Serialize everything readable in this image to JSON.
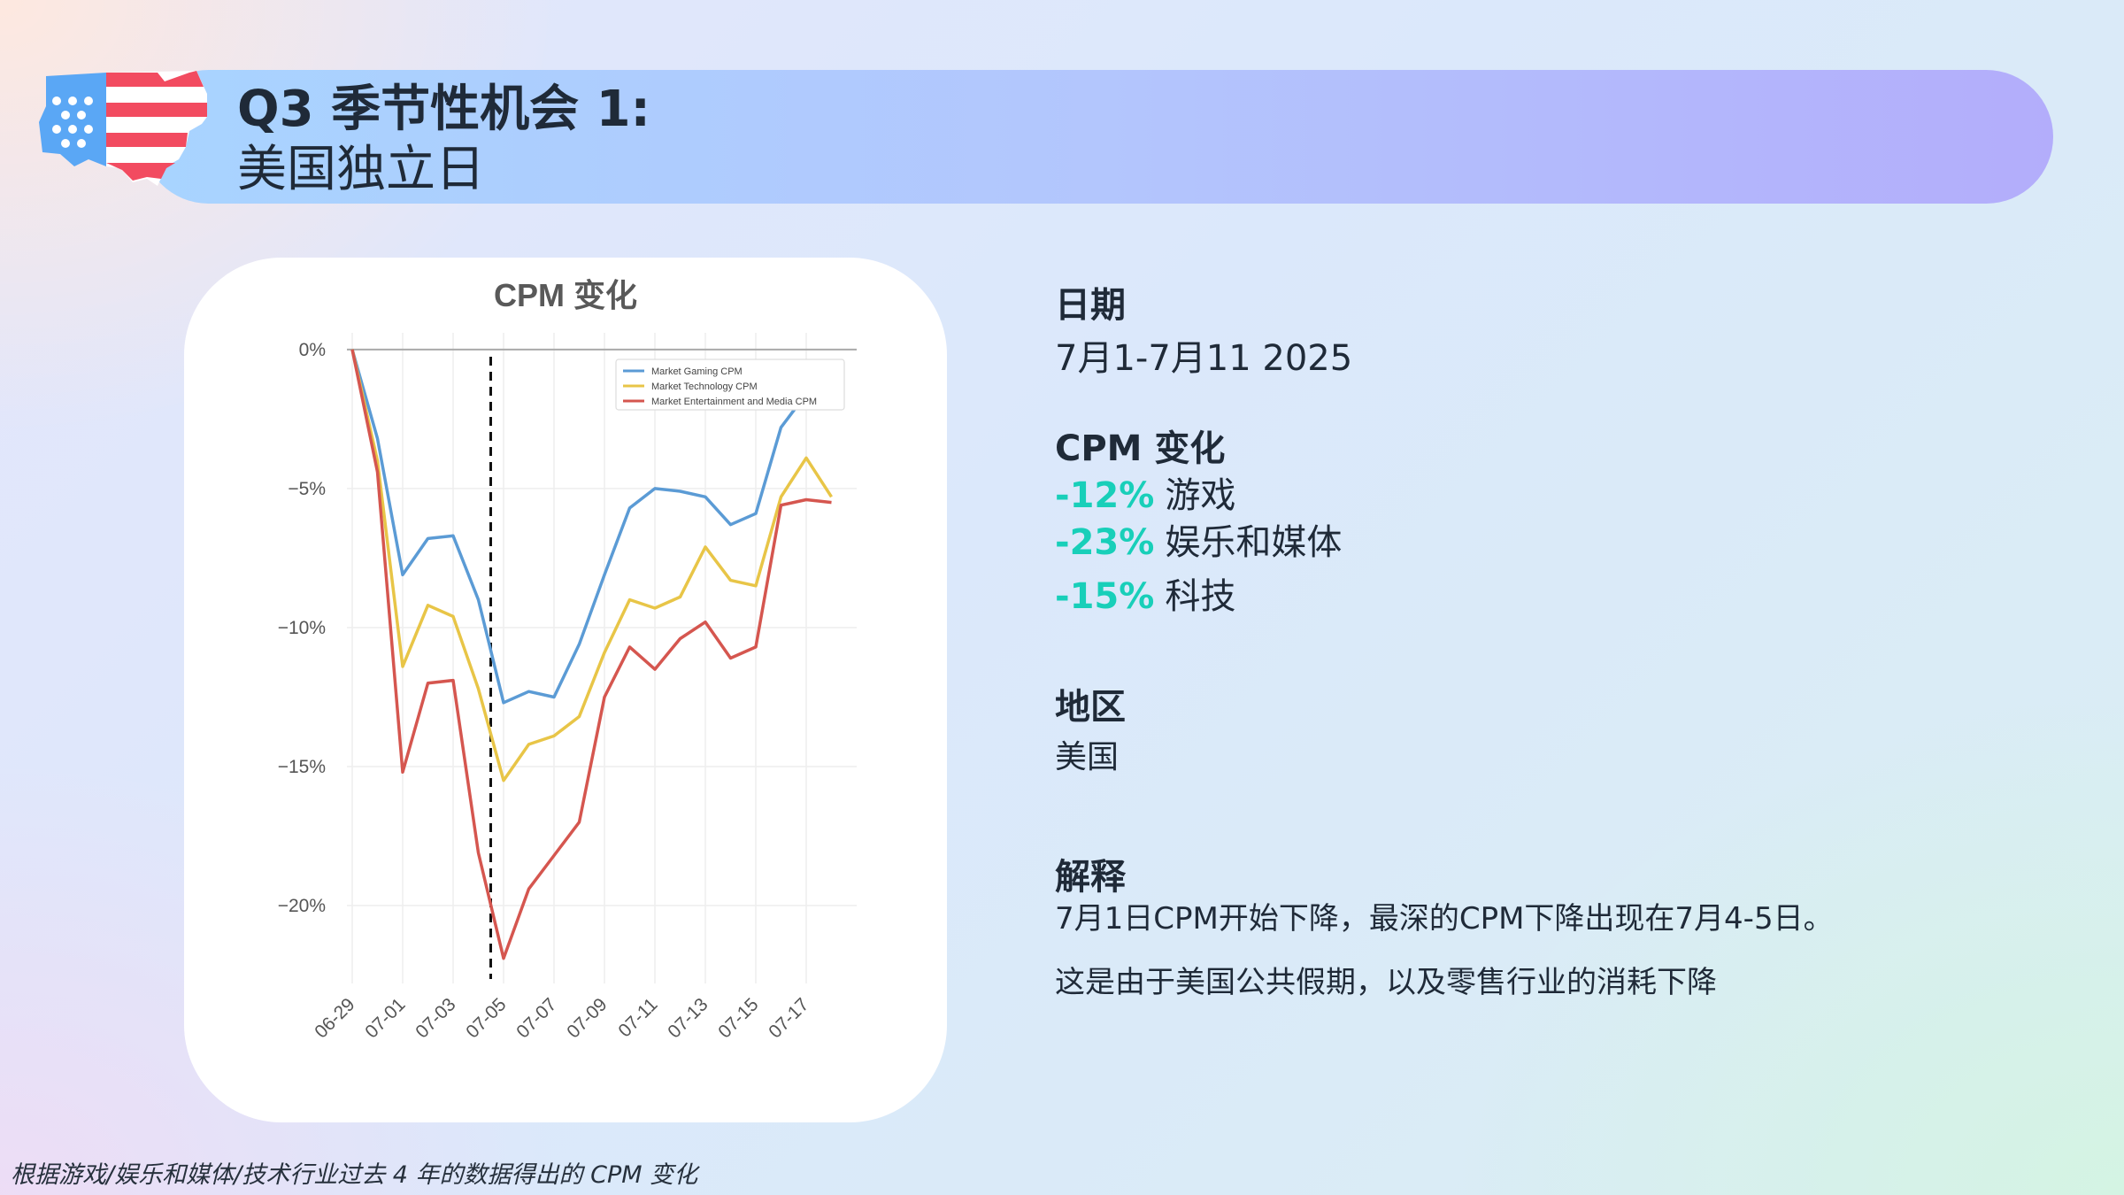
{
  "header": {
    "title_line1": "Q3 季节性机会 1:",
    "title_line2": "美国独立日"
  },
  "colors": {
    "accent_teal": "#18cfb9",
    "flag_blue": "#5aa7f5",
    "flag_red": "#f24b60"
  },
  "details": {
    "date_label": "日期",
    "date_value": "7月1-7月11 2025",
    "cpm_label": "CPM 变化",
    "changes": [
      {
        "pct": "-12%",
        "label": "游戏"
      },
      {
        "pct": "-23%",
        "label": "娱乐和媒体"
      },
      {
        "pct": "-15%",
        "label": "科技"
      }
    ],
    "region_label": "地区",
    "region_value": "美国",
    "explanation_label": "解释",
    "explanation_line1": "7月1日CPM开始下降，最深的CPM下降出现在7月4-5日。",
    "explanation_line2": "这是由于美国公共假期，以及零售行业的消耗下降"
  },
  "footnote": "根据游戏/娱乐和媒体/技术行业过去 4 年的数据得出的 CPM 变化",
  "chart_data": {
    "type": "line",
    "title": "CPM 变化",
    "xlabel": "",
    "ylabel": "",
    "ylim": [
      -22.8,
      0.6
    ],
    "yticks": [
      0,
      -5,
      -10,
      -15,
      -20
    ],
    "ytick_labels": [
      "0%",
      "−5%",
      "−10%",
      "−15%",
      "−20%"
    ],
    "x": [
      "06-29",
      "06-30",
      "07-01",
      "07-02",
      "07-03",
      "07-04",
      "07-05",
      "07-06",
      "07-07",
      "07-08",
      "07-09",
      "07-10",
      "07-11",
      "07-12",
      "07-13",
      "07-14",
      "07-15",
      "07-16",
      "07-17",
      "07-18"
    ],
    "xtick_labels": [
      "06-29",
      "07-01",
      "07-03",
      "07-05",
      "07-07",
      "07-09",
      "07-11",
      "07-13",
      "07-15",
      "07-17"
    ],
    "reference_line_x": "07-04",
    "legend_position": "top-right",
    "grid": true,
    "series": [
      {
        "name": "Market Gaming CPM",
        "color": "#5b9bd5",
        "values": [
          0,
          -3.2,
          -8.1,
          -6.8,
          -6.7,
          -9.0,
          -12.7,
          -12.3,
          -12.5,
          -10.6,
          -8.1,
          -5.7,
          -5.0,
          -5.1,
          -5.3,
          -6.3,
          -5.9,
          -2.8,
          -1.6,
          -1.6
        ]
      },
      {
        "name": "Market Technology CPM",
        "color": "#e8c547",
        "values": [
          0,
          -4.0,
          -11.4,
          -9.2,
          -9.6,
          -12.2,
          -15.5,
          -14.2,
          -13.9,
          -13.2,
          -10.9,
          -9.0,
          -9.3,
          -8.9,
          -7.1,
          -8.3,
          -8.5,
          -5.3,
          -3.9,
          -5.3
        ]
      },
      {
        "name": "Market Entertainment and Media CPM",
        "color": "#d5564f",
        "values": [
          0,
          -4.4,
          -15.2,
          -12.0,
          -11.9,
          -18.1,
          -21.9,
          -19.4,
          -18.2,
          -17.0,
          -12.5,
          -10.7,
          -11.5,
          -10.4,
          -9.8,
          -11.1,
          -10.7,
          -5.6,
          -5.4,
          -5.5
        ]
      }
    ]
  }
}
